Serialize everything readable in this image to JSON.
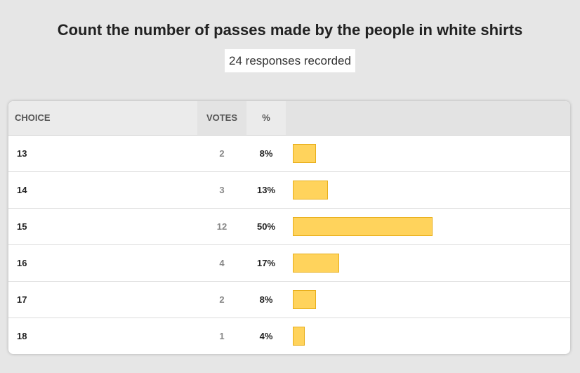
{
  "poll": {
    "title": "Count the number of passes made by the people in white shirts",
    "responses_text": "24 responses recorded"
  },
  "table": {
    "headers": {
      "choice": "CHOICE",
      "votes": "VOTES",
      "percent": "%"
    },
    "rows": [
      {
        "choice": "13",
        "votes": "2",
        "percent": "8%",
        "fraction": 0.083
      },
      {
        "choice": "14",
        "votes": "3",
        "percent": "13%",
        "fraction": 0.125
      },
      {
        "choice": "15",
        "votes": "12",
        "percent": "50%",
        "fraction": 0.5
      },
      {
        "choice": "16",
        "votes": "4",
        "percent": "17%",
        "fraction": 0.167
      },
      {
        "choice": "17",
        "votes": "2",
        "percent": "8%",
        "fraction": 0.083
      },
      {
        "choice": "18",
        "votes": "1",
        "percent": "4%",
        "fraction": 0.042
      }
    ]
  },
  "colors": {
    "bar_fill": "#ffd35c",
    "bar_border": "#e8ae1a",
    "background": "#e6e6e6"
  }
}
